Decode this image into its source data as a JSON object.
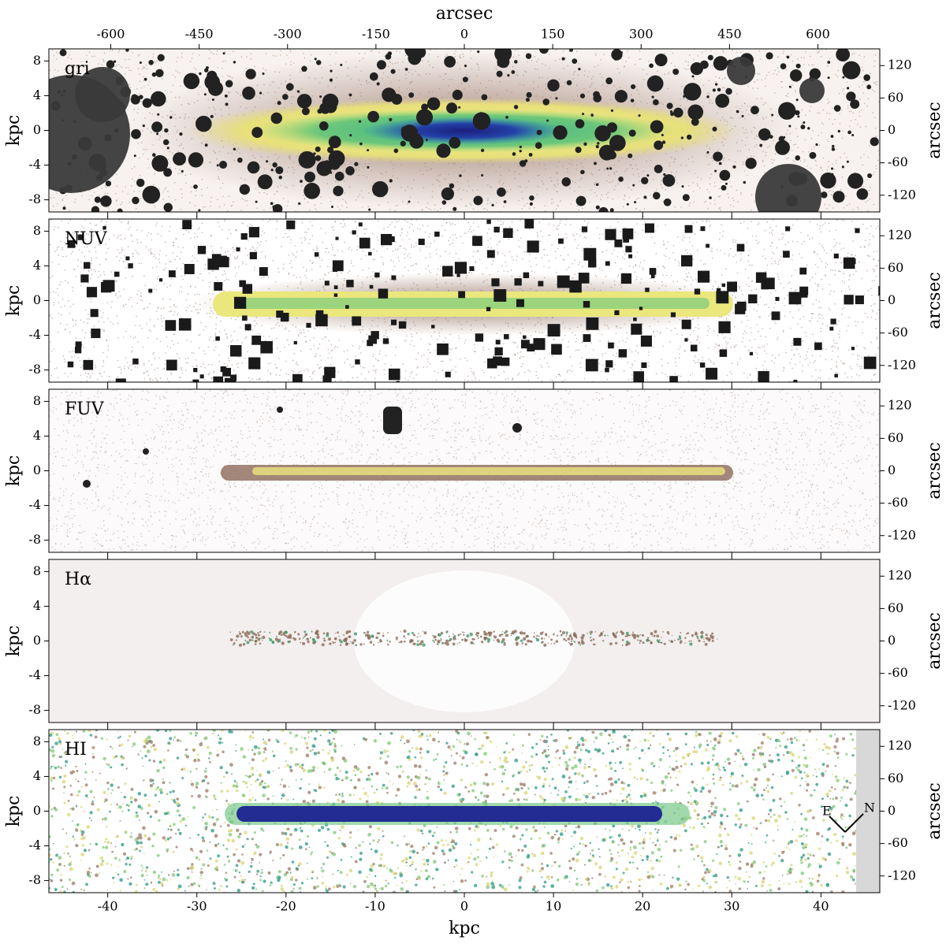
{
  "chart_data": [
    {
      "type": "image",
      "label": "gri",
      "x2label": "arcsec",
      "x2lim": [
        -705,
        705
      ],
      "x2ticks": [
        -600,
        -450,
        -300,
        -150,
        0,
        150,
        300,
        450,
        600
      ],
      "ylabel": "kpc",
      "ylim": [
        -9.4,
        9.4
      ],
      "yticks": [
        -8,
        -4,
        0,
        4,
        8
      ],
      "y2label": "arcsec",
      "y2lim": [
        -151,
        151
      ],
      "y2ticks": [
        -120,
        -60,
        0,
        60,
        120
      ]
    },
    {
      "type": "image",
      "label": "NUV",
      "ylabel": "kpc",
      "ylim": [
        -9.4,
        9.4
      ],
      "yticks": [
        -8,
        -4,
        0,
        4,
        8
      ],
      "y2label": "arcsec",
      "y2lim": [
        -151,
        151
      ],
      "y2ticks": [
        -120,
        -60,
        0,
        60,
        120
      ]
    },
    {
      "type": "image",
      "label": "FUV",
      "ylabel": "kpc",
      "ylim": [
        -9.4,
        9.4
      ],
      "yticks": [
        -8,
        -4,
        0,
        4,
        8
      ],
      "y2label": "arcsec",
      "y2lim": [
        -151,
        151
      ],
      "y2ticks": [
        -120,
        -60,
        0,
        60,
        120
      ]
    },
    {
      "type": "image",
      "label": "Hα",
      "ylabel": "kpc",
      "ylim": [
        -9.4,
        9.4
      ],
      "yticks": [
        -8,
        -4,
        0,
        4,
        8
      ],
      "y2label": "arcsec",
      "y2lim": [
        -151,
        151
      ],
      "y2ticks": [
        -120,
        -60,
        0,
        60,
        120
      ]
    },
    {
      "type": "image",
      "label": "HI",
      "xlabel": "kpc",
      "xlim": [
        -46.6,
        46.6
      ],
      "xticks": [
        -40,
        -30,
        -20,
        -10,
        0,
        10,
        20,
        30,
        40
      ],
      "ylabel": "kpc",
      "ylim": [
        -9.4,
        9.4
      ],
      "yticks": [
        -8,
        -4,
        0,
        4,
        8
      ],
      "y2label": "arcsec",
      "y2lim": [
        -151,
        151
      ],
      "y2ticks": [
        -120,
        -60,
        0,
        60,
        120
      ],
      "compass": [
        "E",
        "N"
      ]
    }
  ]
}
